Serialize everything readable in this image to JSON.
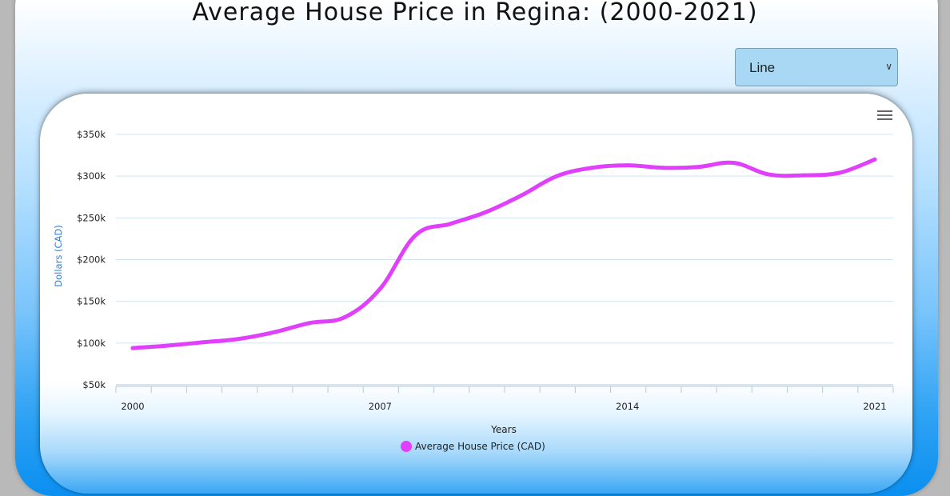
{
  "title": "Average House Price in Regina: (2000-2021)",
  "chart_type_select": {
    "selected": "Line"
  },
  "chart_data": {
    "type": "line",
    "title": "Average House Price in Regina: (2000-2021)",
    "xlabel": "Years",
    "ylabel": "Dollars (CAD)",
    "ylim": [
      50000,
      350000
    ],
    "xlim": [
      2000,
      2021
    ],
    "y_ticks": [
      {
        "value": 350000,
        "label": "$350k"
      },
      {
        "value": 300000,
        "label": "$300k"
      },
      {
        "value": 250000,
        "label": "$250k"
      },
      {
        "value": 200000,
        "label": "$200k"
      },
      {
        "value": 150000,
        "label": "$150k"
      },
      {
        "value": 100000,
        "label": "$100k"
      },
      {
        "value": 50000,
        "label": "$50k"
      }
    ],
    "x_ticks": [
      {
        "value": 2000,
        "label": "2000"
      },
      {
        "value": 2007,
        "label": "2007"
      },
      {
        "value": 2014,
        "label": "2014"
      },
      {
        "value": 2021,
        "label": "2021"
      }
    ],
    "grid": true,
    "legend_position": "bottom-center",
    "series": [
      {
        "name": "Average House Price (CAD)",
        "color": "#e040fb",
        "x": [
          2000,
          2001,
          2002,
          2003,
          2004,
          2005,
          2006,
          2007,
          2008,
          2009,
          2010,
          2011,
          2012,
          2013,
          2014,
          2015,
          2016,
          2017,
          2018,
          2019,
          2020,
          2021
        ],
        "values": [
          94000,
          97000,
          101000,
          105000,
          113000,
          124000,
          131000,
          165000,
          229000,
          243000,
          257000,
          277000,
          300000,
          310000,
          313000,
          310000,
          311000,
          316000,
          302000,
          301000,
          304000,
          320000
        ]
      }
    ]
  }
}
